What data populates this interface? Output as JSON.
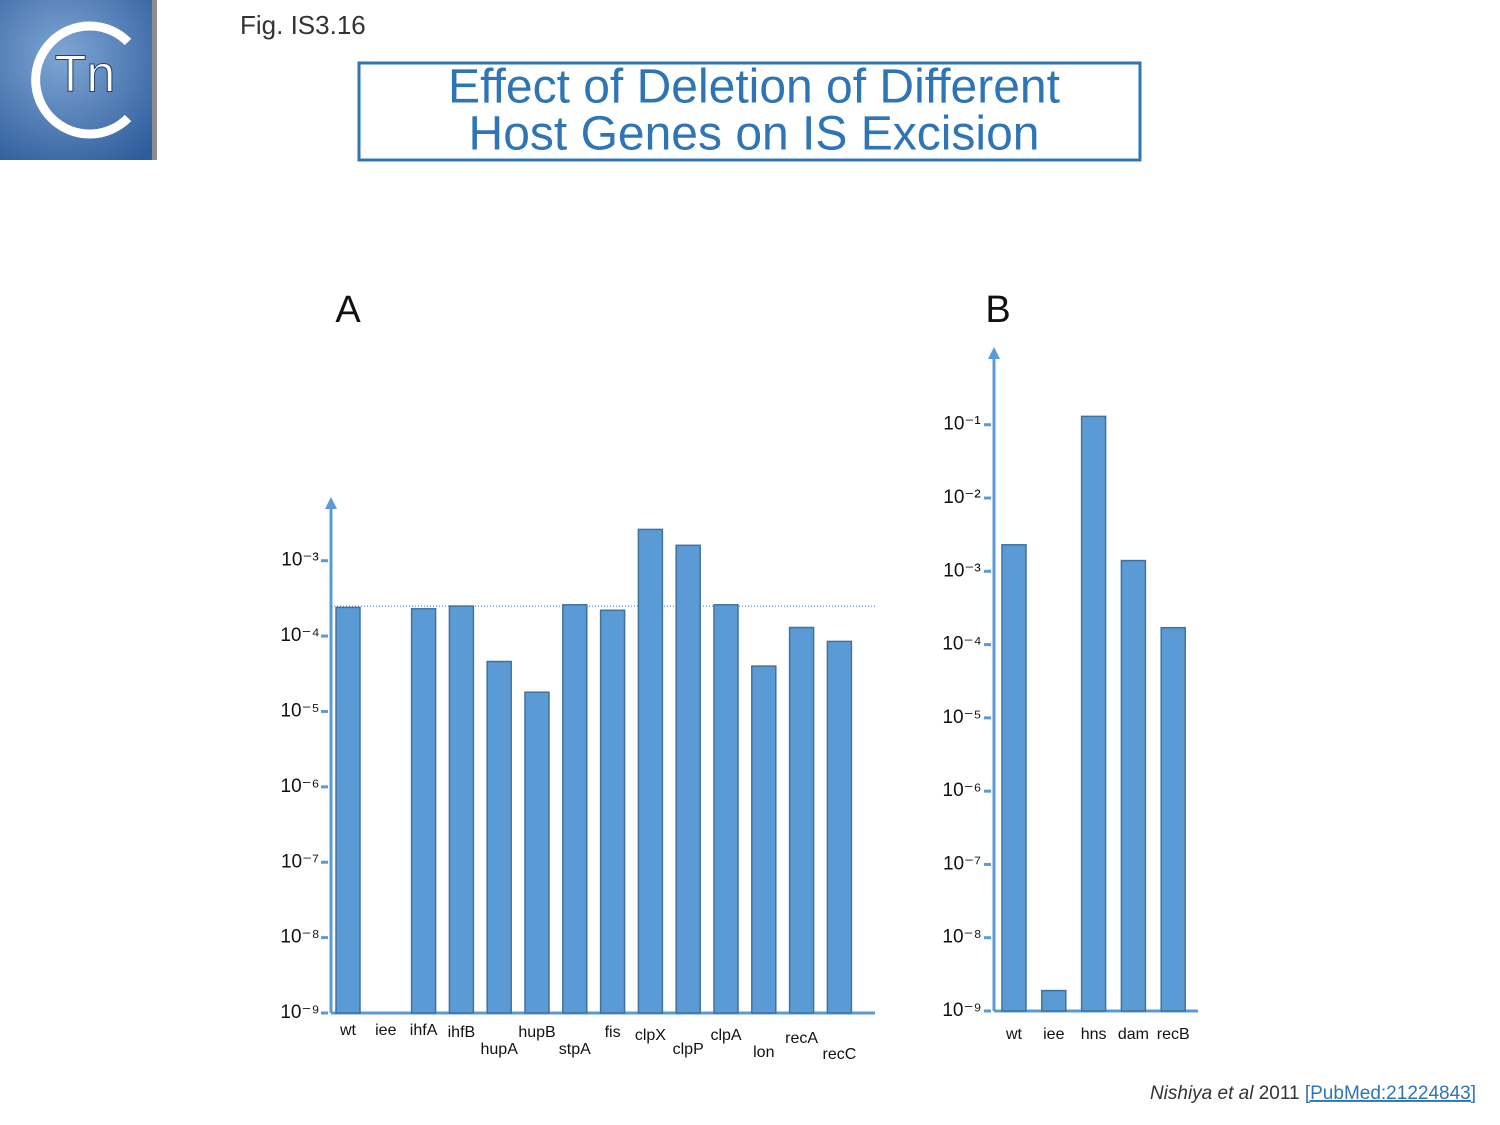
{
  "figure_label": "Fig. IS3.16",
  "logo_text": "Tn",
  "title_lines": [
    "Effect of Deletion of Different",
    "Host Genes on IS Excision"
  ],
  "citation": {
    "authors": "Nishiya et al",
    "year": "2011",
    "link": "[PubMed:21224843]"
  },
  "chart_data": [
    {
      "type": "bar",
      "title": "A",
      "log_scale": true,
      "color": "#5b9bd5",
      "categories": [
        "wt",
        "iee",
        "ihfA",
        "ihfB",
        "hupA",
        "hupB",
        "stpA",
        "fis",
        "clpX",
        "clpP",
        "clpA",
        "lon",
        "recA",
        "recC"
      ],
      "values": [
        0.00024,
        null,
        0.00023,
        0.00025,
        4.6e-05,
        1.8e-05,
        0.00026,
        0.00022,
        0.0026,
        0.0016,
        0.00026,
        4e-05,
        0.00013,
        8.5e-05
      ],
      "reference_line": 0.00025,
      "ylim": [
        1e-09,
        0.007
      ],
      "yticks": [
        {
          "value": 1e-09,
          "label": "10⁻⁹"
        },
        {
          "value": 1e-08,
          "label": "10⁻⁸"
        },
        {
          "value": 1e-07,
          "label": "10⁻⁷"
        },
        {
          "value": 1e-06,
          "label": "10⁻⁶"
        },
        {
          "value": 1e-05,
          "label": "10⁻⁵"
        },
        {
          "value": 0.0001,
          "label": "10⁻⁴"
        },
        {
          "value": 0.001,
          "label": "10⁻³"
        }
      ]
    },
    {
      "type": "bar",
      "title": "B",
      "log_scale": true,
      "color": "#5b9bd5",
      "categories": [
        "wt",
        "iee",
        "hns",
        "dam",
        "recB"
      ],
      "values": [
        0.0023,
        1.9e-09,
        0.13,
        0.0014,
        0.00017
      ],
      "ylim": [
        1e-09,
        1.15
      ],
      "yticks": [
        {
          "value": 1e-09,
          "label": "10⁻⁹"
        },
        {
          "value": 1e-08,
          "label": "10⁻⁸"
        },
        {
          "value": 1e-07,
          "label": "10⁻⁷"
        },
        {
          "value": 1e-06,
          "label": "10⁻⁶"
        },
        {
          "value": 1e-05,
          "label": "10⁻⁵"
        },
        {
          "value": 0.0001,
          "label": "10⁻⁴"
        },
        {
          "value": 0.001,
          "label": "10⁻³"
        },
        {
          "value": 0.01,
          "label": "10⁻²"
        },
        {
          "value": 0.1,
          "label": "10⁻¹"
        }
      ]
    }
  ]
}
